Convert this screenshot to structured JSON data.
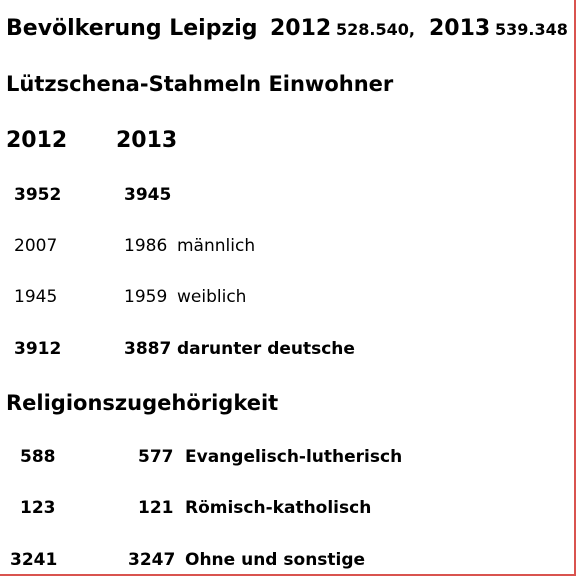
{
  "header": {
    "title": "Bevölkerung Leipzig",
    "year_2012": "2012",
    "pop_2012": "528.540,",
    "year_2013": "2013",
    "pop_2013": "539.348"
  },
  "district": {
    "title": "Lützschena-Stahmeln Einwohner",
    "col_2012": "2012",
    "col_2013": "2013"
  },
  "rows": [
    {
      "v2012": "3952",
      "v2013": "3945",
      "label": ""
    },
    {
      "v2012": "2007",
      "v2013": "1986",
      "label": "männlich"
    },
    {
      "v2012": "1945",
      "v2013": "1959",
      "label": "weiblich"
    },
    {
      "v2012": "3912",
      "v2013": "3887",
      "label": "darunter deutsche"
    }
  ],
  "religion": {
    "title": "Religionszugehörigkeit",
    "rows": [
      {
        "v2012": "588",
        "v2013": "577",
        "label": "Evangelisch-lutherisch"
      },
      {
        "v2012": "123",
        "v2013": "121",
        "label": "Römisch-katholisch"
      },
      {
        "v2012": "3241",
        "v2013": "3247",
        "label": "Ohne und sonstige"
      }
    ]
  },
  "colors": {
    "frame": "#d9534f",
    "text": "#000000",
    "background": "#ffffff"
  }
}
